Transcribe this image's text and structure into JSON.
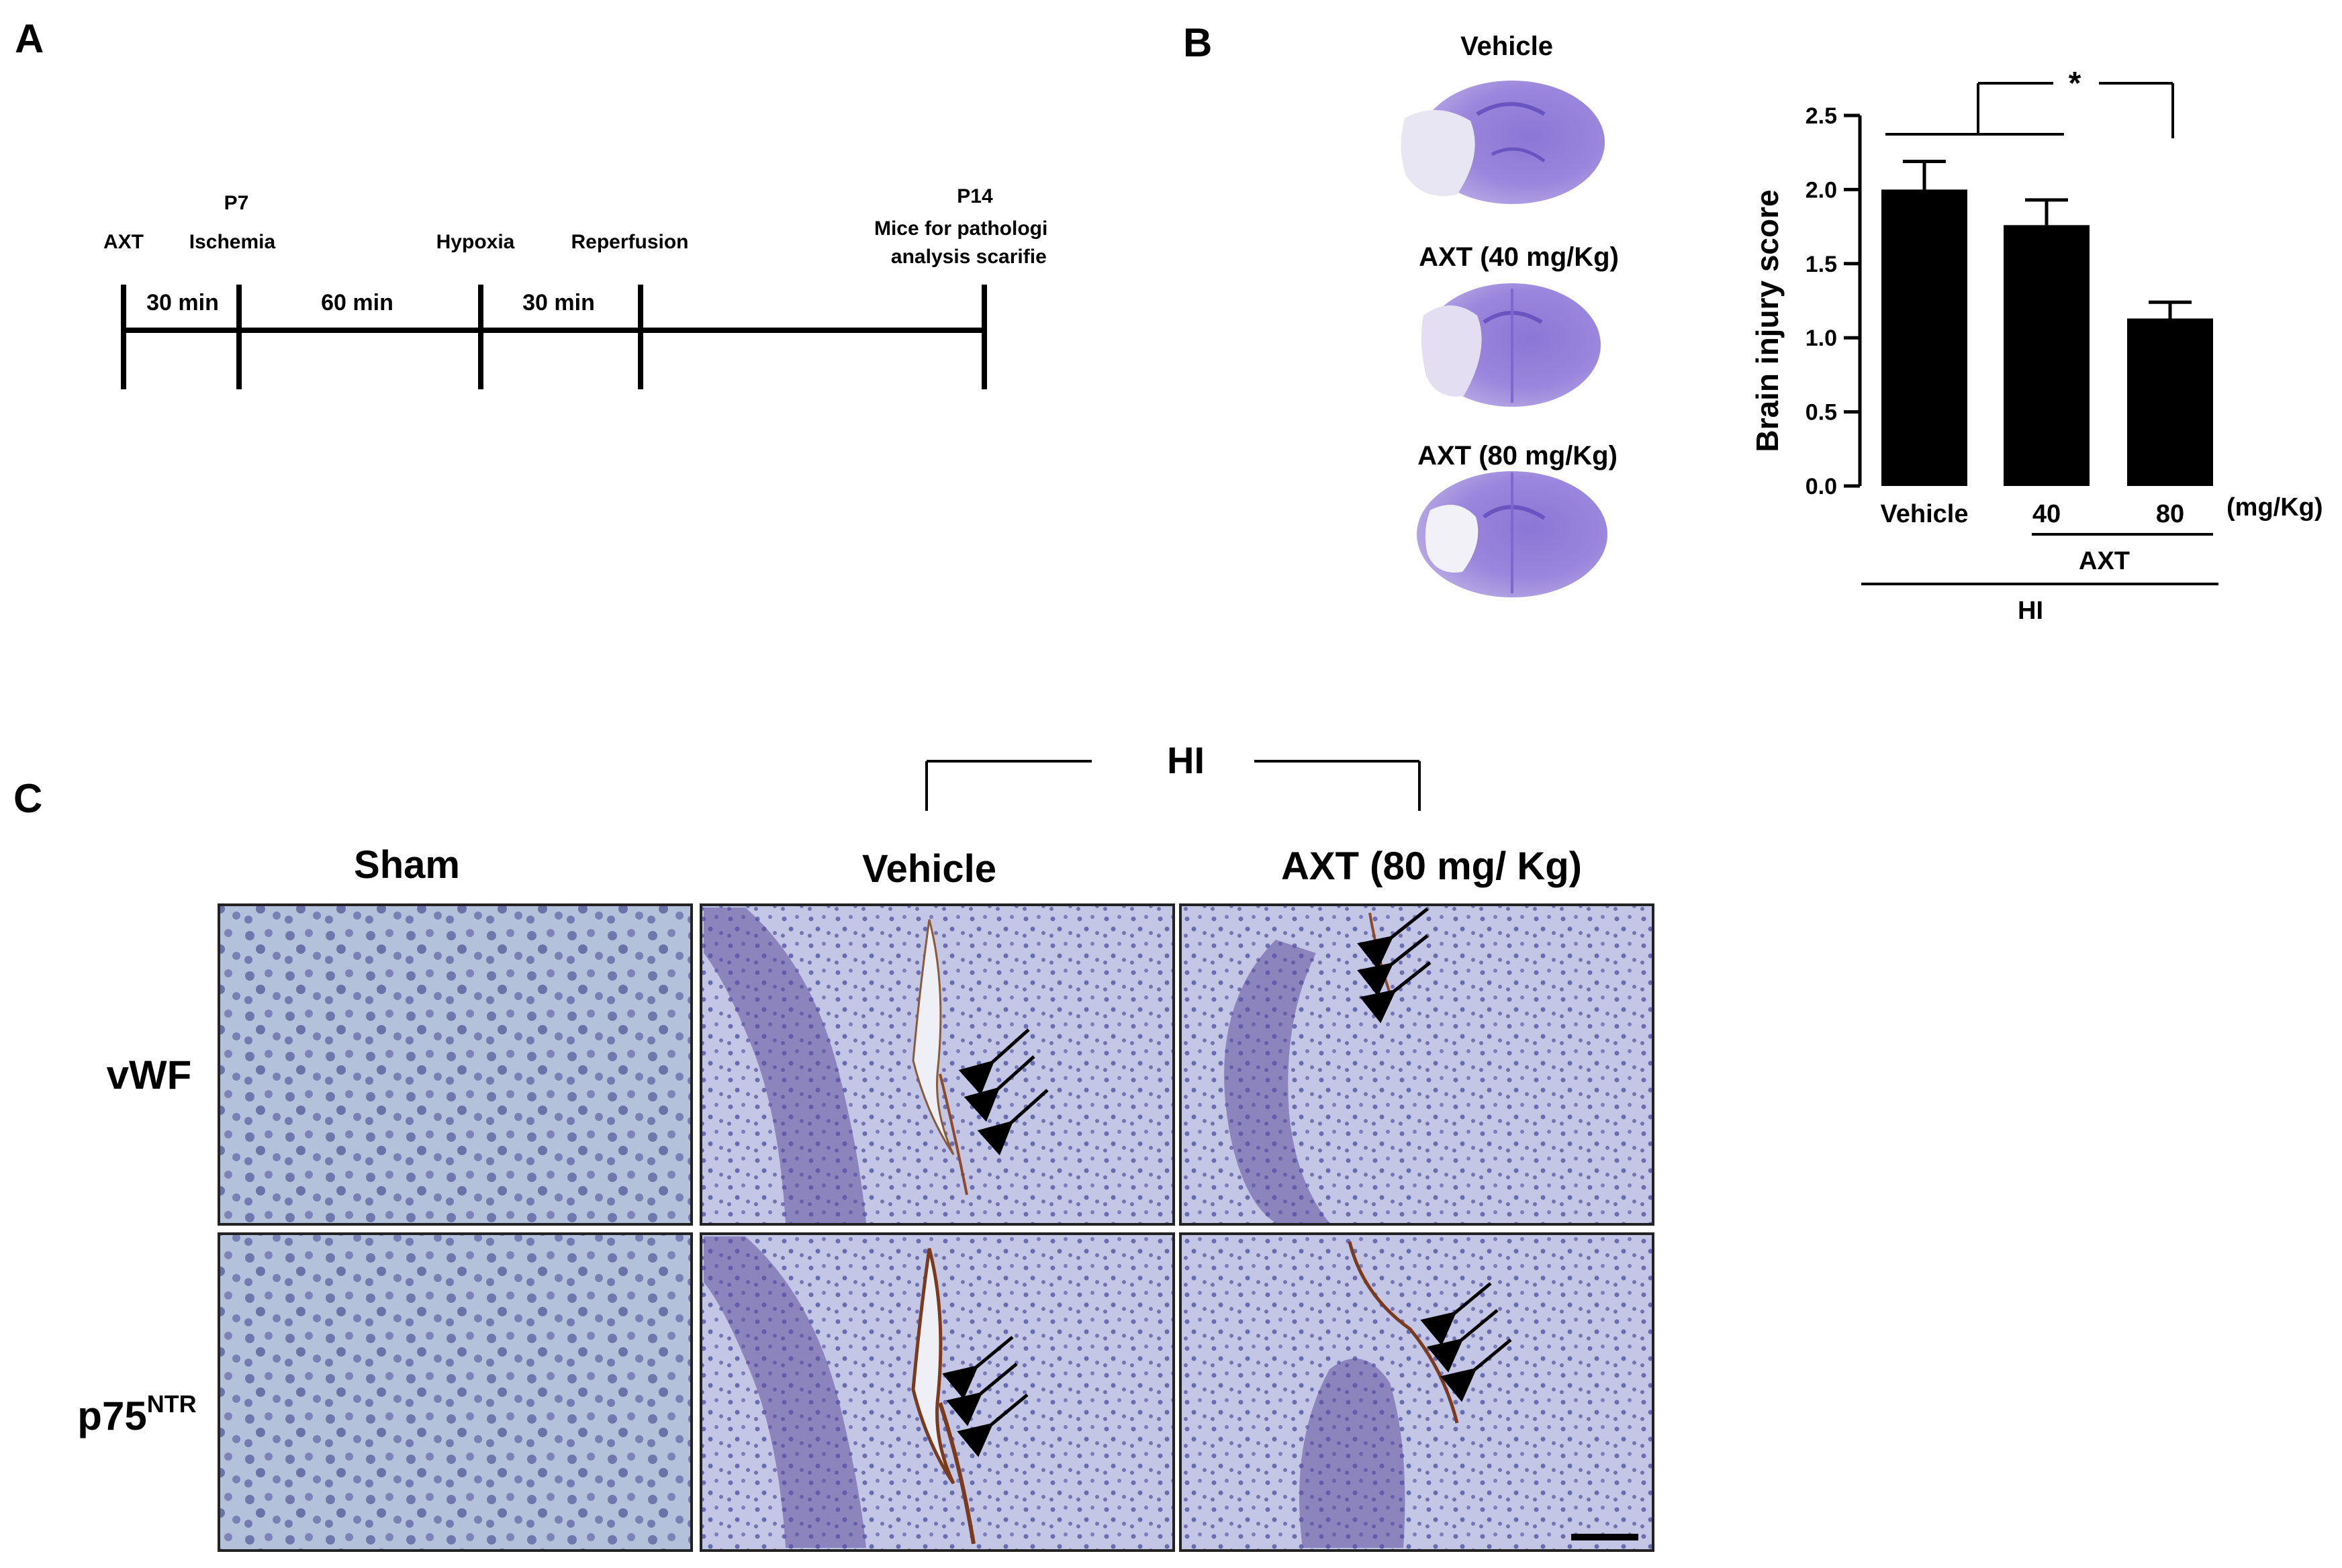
{
  "panel_labels": {
    "a": "A",
    "b": "B",
    "c": "C"
  },
  "timeline": {
    "events": [
      {
        "id": "axt",
        "label": "AXT"
      },
      {
        "id": "p7",
        "label": "P7"
      },
      {
        "id": "ischemia",
        "label": "Ischemia"
      },
      {
        "id": "hypoxia",
        "label": "Hypoxia"
      },
      {
        "id": "reperfusion",
        "label": "Reperfusion"
      },
      {
        "id": "p14",
        "label": "P14"
      },
      {
        "id": "p14_line1",
        "label": "Mice for pathological"
      },
      {
        "id": "p14_line2",
        "label": "analysis scarified"
      }
    ],
    "intervals": [
      "30 min",
      "60 min",
      "30 min"
    ]
  },
  "sections": {
    "labels": [
      "Vehicle",
      "AXT (40 mg/Kg)",
      "AXT (80 mg/Kg)"
    ]
  },
  "chart_data": {
    "type": "bar",
    "ylabel": "Brain injury score",
    "categories": [
      "Vehicle",
      "40",
      "80"
    ],
    "values": [
      2.0,
      1.76,
      1.13
    ],
    "errors": [
      0.19,
      0.17,
      0.11
    ],
    "ylim": [
      0,
      2.5
    ],
    "yticks": [
      "0.0",
      "0.5",
      "1.0",
      "1.5",
      "2.0",
      "2.5"
    ],
    "unit_label": "(mg/Kg)",
    "group_labels": {
      "axt": "AXT",
      "hi": "HI"
    },
    "significance": "*",
    "bar_color": "#000000"
  },
  "histology": {
    "group_label": "HI",
    "columns": [
      "Sham",
      "Vehicle",
      "AXT (80 mg/ Kg)"
    ],
    "rows": [
      {
        "label": "vWF"
      },
      {
        "label": "p75",
        "superscript": "NTR"
      }
    ]
  }
}
